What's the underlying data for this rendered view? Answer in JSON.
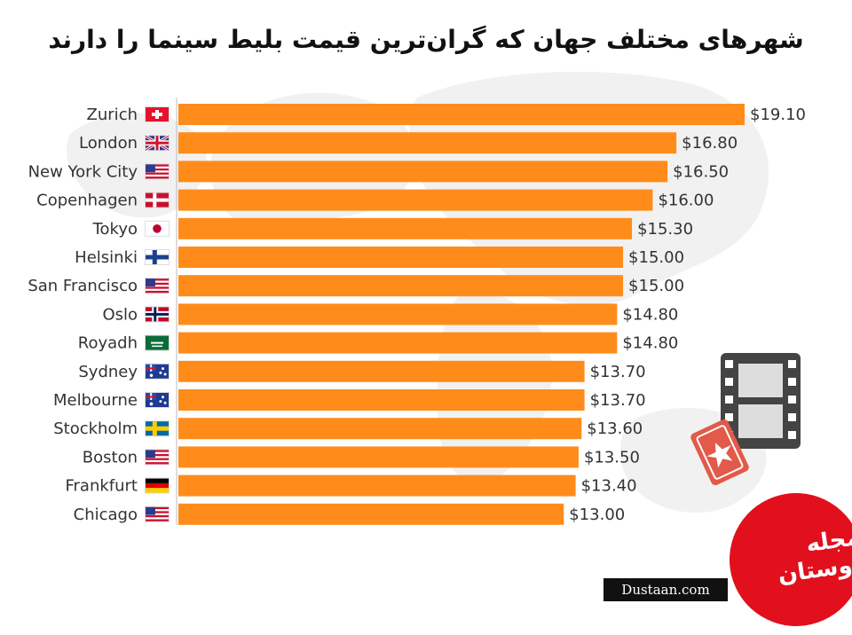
{
  "title": "شهرهای مختلف جهان که گران‌ترین قیمت بلیط سینما را دارند",
  "chart_data": {
    "type": "bar",
    "orientation": "horizontal",
    "categories": [
      "Zurich",
      "London",
      "New York City",
      "Copenhagen",
      "Tokyo",
      "Helsinki",
      "San Francisco",
      "Oslo",
      "Royadh",
      "Sydney",
      "Melbourne",
      "Stockholm",
      "Boston",
      "Frankfurt",
      "Chicago"
    ],
    "values": [
      19.1,
      16.8,
      16.5,
      16.0,
      15.3,
      15.0,
      15.0,
      14.8,
      14.8,
      13.7,
      13.7,
      13.6,
      13.5,
      13.4,
      13.0
    ],
    "value_labels": [
      "$19.10",
      "$16.80",
      "$16.50",
      "$16.00",
      "$15.30",
      "$15.00",
      "$15.00",
      "$14.80",
      "$14.80",
      "$13.70",
      "$13.70",
      "$13.60",
      "$13.50",
      "$13.40",
      "$13.00"
    ],
    "flags": [
      "ch",
      "gb",
      "us",
      "dk",
      "jp",
      "fi",
      "us",
      "no",
      "sa",
      "au",
      "au",
      "se",
      "us",
      "de",
      "us"
    ],
    "xlim": [
      0,
      19.1
    ],
    "grid": false,
    "bar_color": "#ff8c1a"
  },
  "colors": {
    "bar": "#ff8c1a",
    "text": "#333333",
    "map": "#eeeeee"
  },
  "icons": [
    "film-strip-icon",
    "ticket-icon"
  ],
  "watermark": {
    "url": "Dustaan.com",
    "logo_text": "مجله دوستان"
  }
}
